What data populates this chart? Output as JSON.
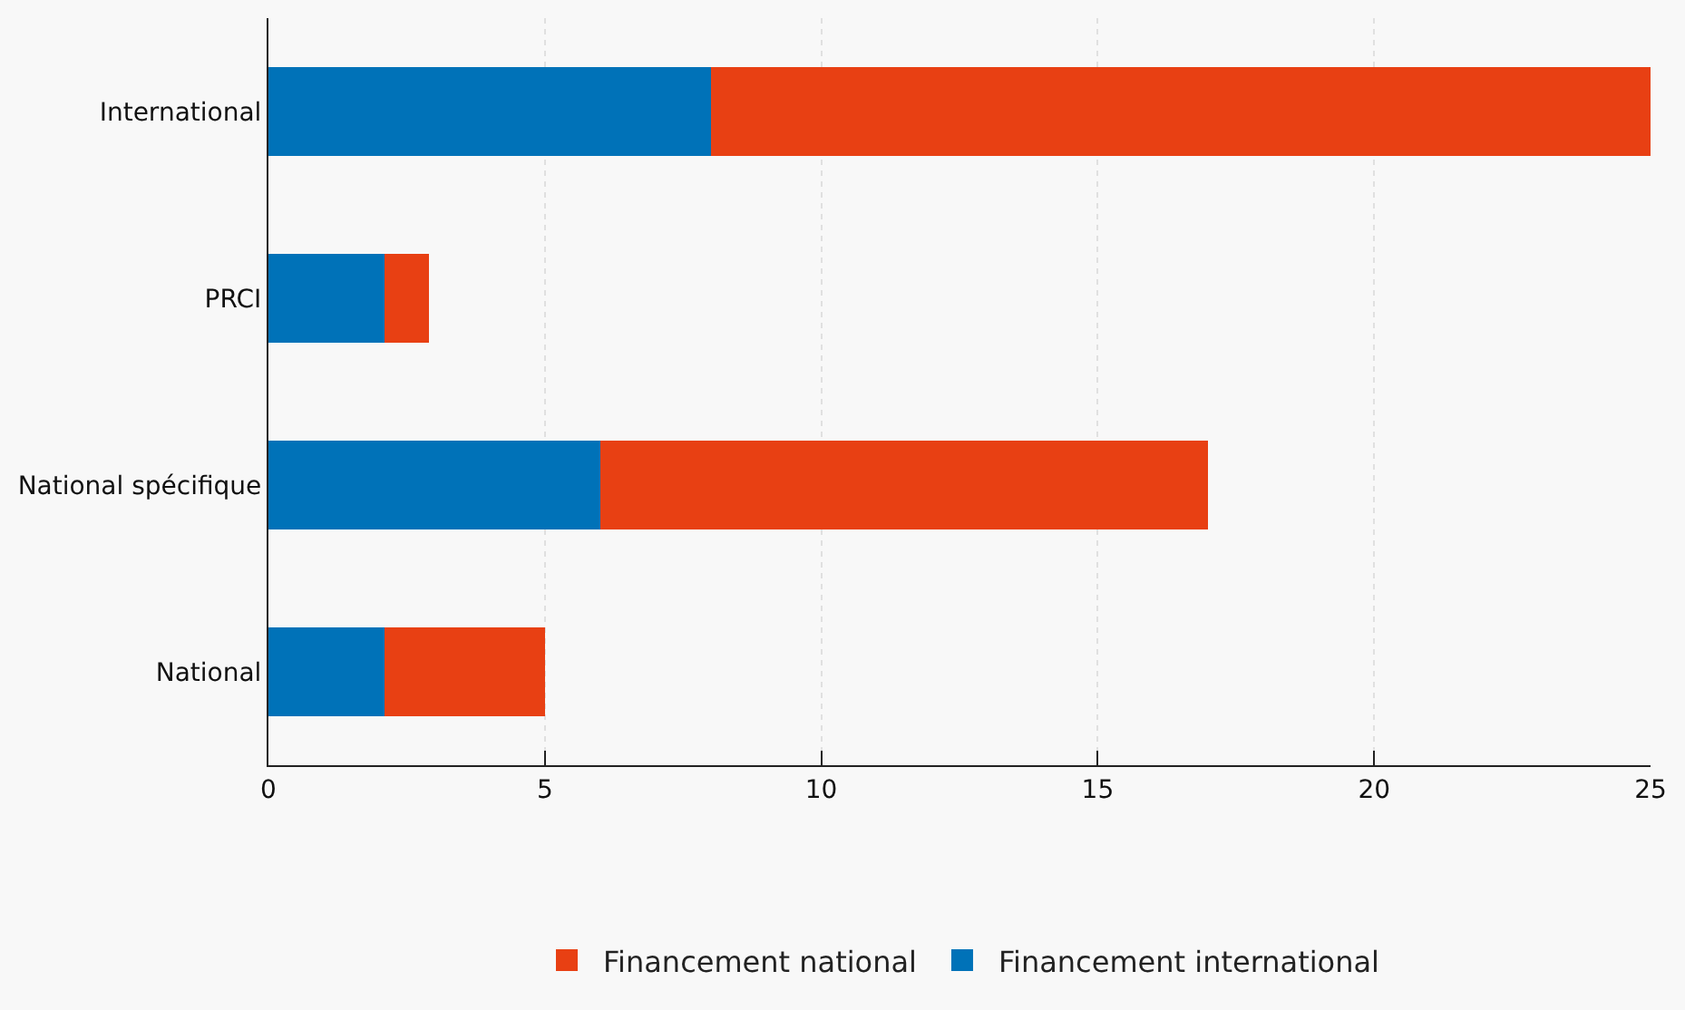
{
  "chart_data": {
    "type": "bar",
    "orientation": "horizontal",
    "stacked": true,
    "categories": [
      "International",
      "PRCI",
      "National spécifique",
      "National"
    ],
    "series": [
      {
        "name": "Financement international",
        "color": "#0072b8",
        "values": [
          8,
          2.1,
          6,
          2.1
        ]
      },
      {
        "name": "Financement national",
        "color": "#e84013",
        "values": [
          17,
          0.8,
          11,
          2.9
        ]
      }
    ],
    "xlim": [
      0,
      25
    ],
    "xticks": [
      0,
      5,
      10,
      15,
      20,
      25
    ],
    "grid": "x",
    "legend": "bottom"
  }
}
